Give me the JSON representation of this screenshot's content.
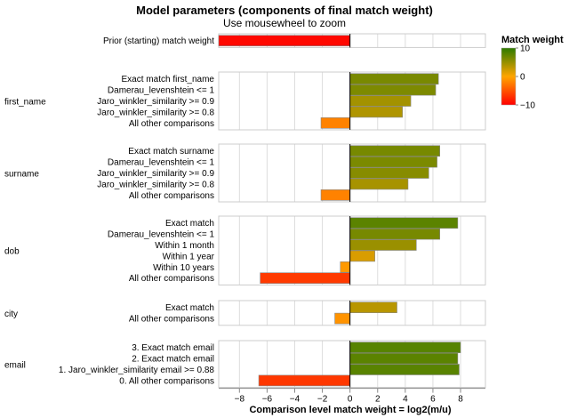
{
  "chart_data": {
    "type": "bar",
    "orientation": "horizontal",
    "title": "Model parameters (components of final match weight)",
    "subtitle": "Use mousewheel to zoom",
    "xlabel": "Comparison level match weight = log2(m/u)",
    "xlim": [
      -9.5,
      9.8
    ],
    "xticks": [
      "−8",
      "−6",
      "−4",
      "−2",
      "0",
      "2",
      "4",
      "6",
      "8"
    ],
    "xtick_values": [
      -8,
      -6,
      -4,
      -2,
      0,
      2,
      4,
      6,
      8
    ],
    "grid": true,
    "legend": {
      "title": "Match weight",
      "placement": "top-right",
      "ticks": [
        "10",
        "0",
        "−10"
      ],
      "tick_values": [
        10,
        0,
        -10
      ],
      "colors": [
        "#2d7a00",
        "#ffa500",
        "#ff0000"
      ]
    },
    "facets": [
      {
        "name": "",
        "rows": [
          {
            "label": "Prior (starting) match weight",
            "value": -9.5
          }
        ]
      },
      {
        "name": "first_name",
        "rows": [
          {
            "label": "Exact match first_name",
            "value": 6.4
          },
          {
            "label": "Damerau_levenshtein <= 1",
            "value": 6.2
          },
          {
            "label": "Jaro_winkler_similarity >= 0.9",
            "value": 4.4
          },
          {
            "label": "Jaro_winkler_similarity >= 0.8",
            "value": 3.8
          },
          {
            "label": "All other comparisons",
            "value": -2.1
          }
        ]
      },
      {
        "name": "surname",
        "rows": [
          {
            "label": "Exact match surname",
            "value": 6.5
          },
          {
            "label": "Damerau_levenshtein <= 1",
            "value": 6.3
          },
          {
            "label": "Jaro_winkler_similarity >= 0.9",
            "value": 5.7
          },
          {
            "label": "Jaro_winkler_similarity >= 0.8",
            "value": 4.2
          },
          {
            "label": "All other comparisons",
            "value": -2.1
          }
        ]
      },
      {
        "name": "dob",
        "rows": [
          {
            "label": "Exact match",
            "value": 7.8
          },
          {
            "label": "Damerau_levenshtein <= 1",
            "value": 6.5
          },
          {
            "label": "Within 1 month",
            "value": 4.8
          },
          {
            "label": "Within 1 year",
            "value": 1.8
          },
          {
            "label": "Within 10 years",
            "value": -0.7
          },
          {
            "label": "All other comparisons",
            "value": -6.5
          }
        ]
      },
      {
        "name": "city",
        "rows": [
          {
            "label": "Exact match",
            "value": 3.4
          },
          {
            "label": "All other comparisons",
            "value": -1.1
          }
        ]
      },
      {
        "name": "email",
        "rows": [
          {
            "label": "3. Exact match email",
            "value": 8.0
          },
          {
            "label": "2. Exact match email",
            "value": 7.8
          },
          {
            "label": "1. Jaro_winkler_similarity email >= 0.88",
            "value": 7.9
          },
          {
            "label": "0. All other comparisons",
            "value": -6.6
          }
        ]
      }
    ]
  }
}
